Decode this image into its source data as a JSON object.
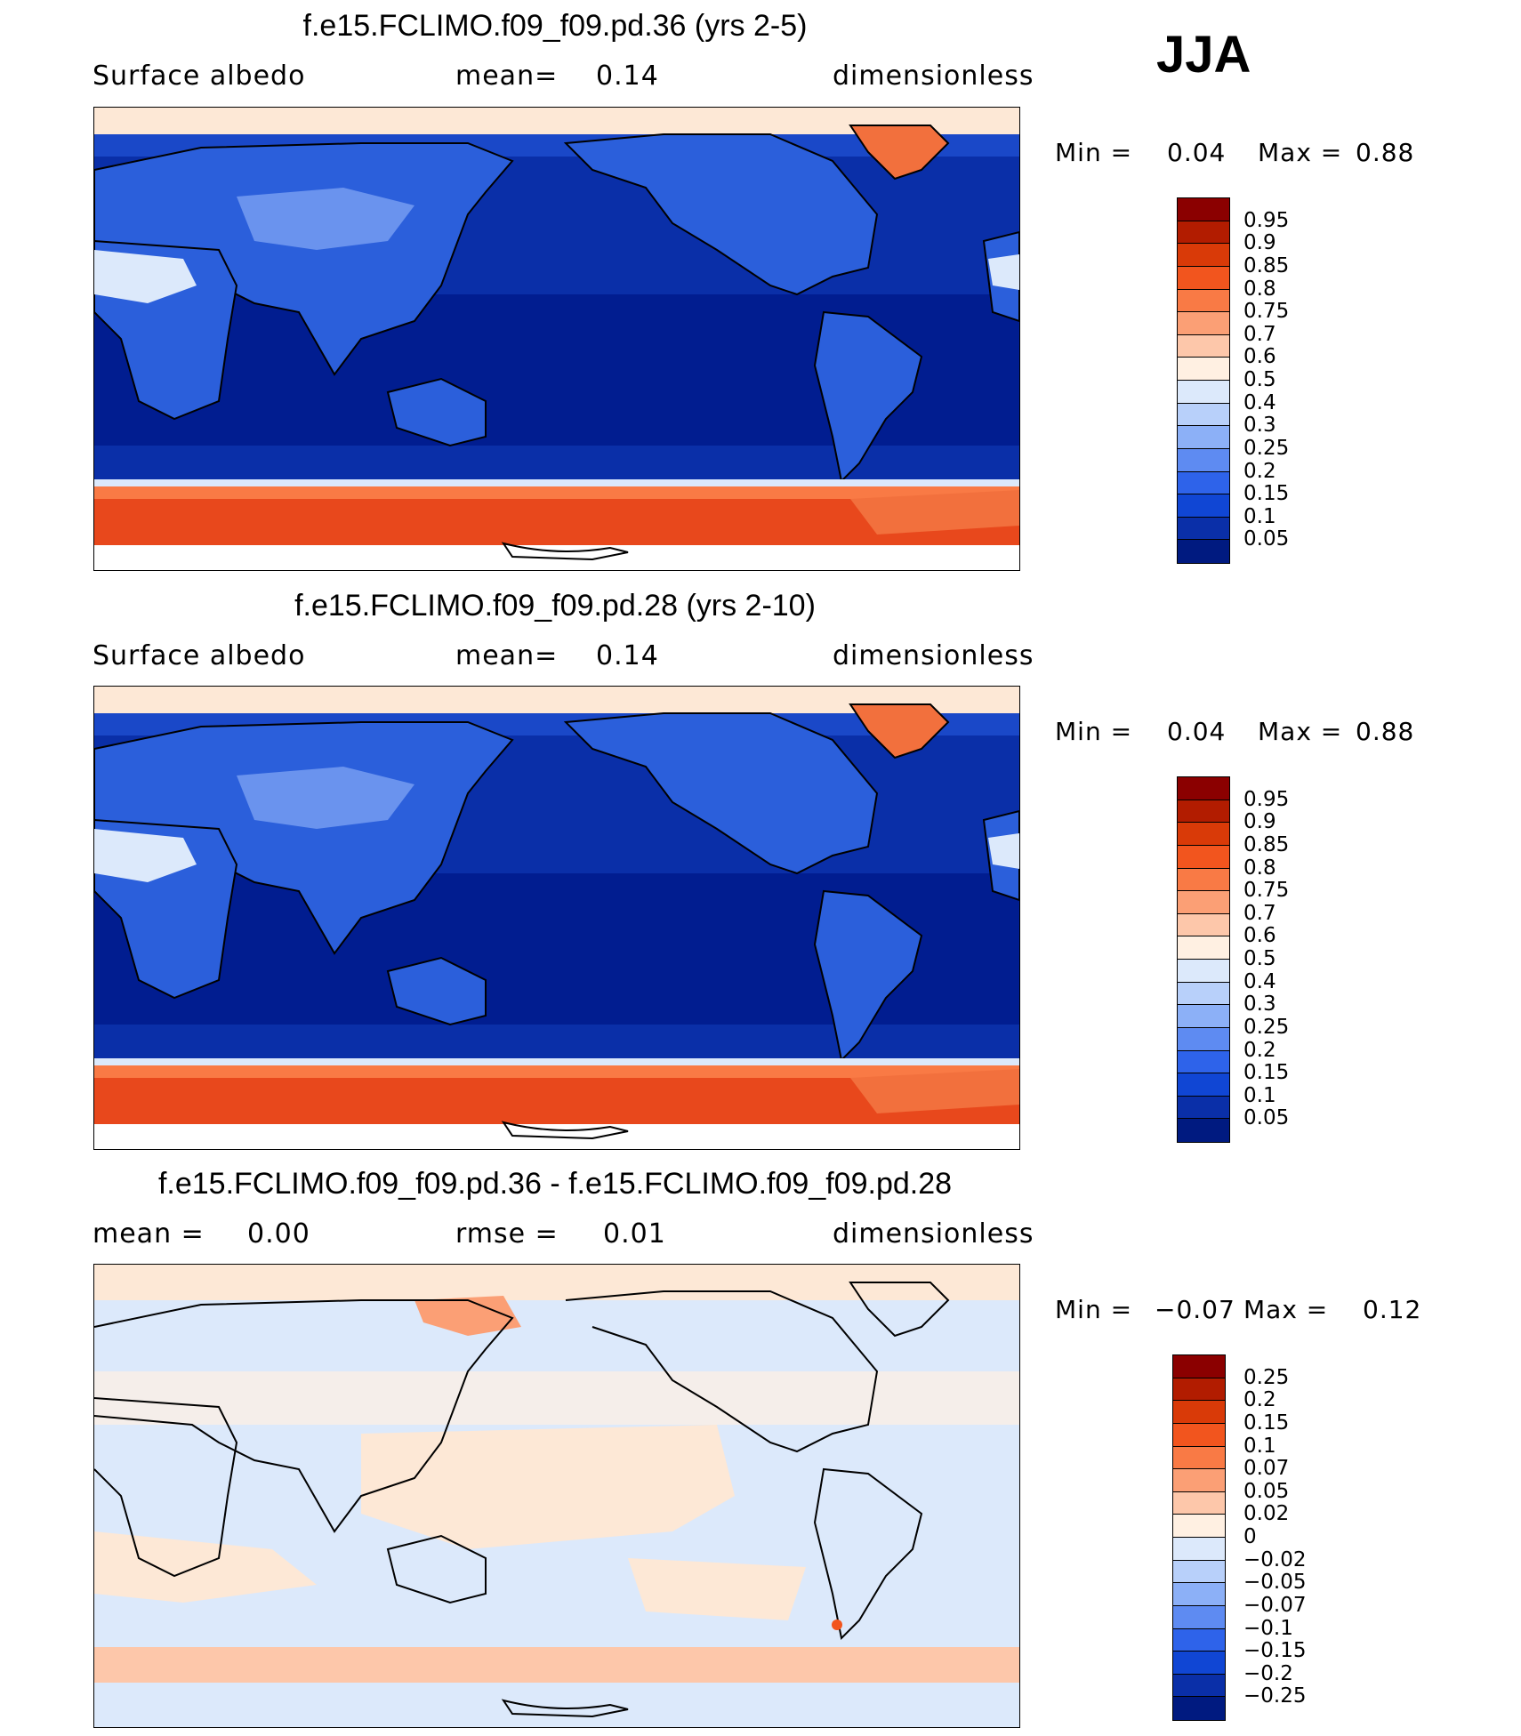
{
  "season": "JJA",
  "colors": {
    "ocean": "#0a2fa8",
    "ocean_deep": "#001a8c",
    "land_blue": "#2b5fdb",
    "land_light": "#6a93ee",
    "ice_red": "#e8481c",
    "ice_orange": "#f2703d",
    "ice_pale": "#fde8d6",
    "white": "#ffffff"
  },
  "panels": [
    {
      "title": "f.e15.FCLIMO.f09_f09.pd.36 (yrs 2-5)",
      "left_label": "Surface albedo",
      "mid_label": "mean=",
      "mid_value": "0.14",
      "right_label": "dimensionless",
      "min_label": "Min =",
      "min_value": "0.04",
      "max_label": "Max =",
      "max_value": "0.88",
      "colorbar_labels": [
        "0.95",
        "0.9",
        "0.85",
        "0.8",
        "0.75",
        "0.7",
        "0.6",
        "0.5",
        "0.4",
        "0.3",
        "0.25",
        "0.2",
        "0.15",
        "0.1",
        "0.05"
      ],
      "colorbar_colors": [
        "#8b0000",
        "#b21c00",
        "#d93a08",
        "#f2551e",
        "#f97a45",
        "#fb9f75",
        "#fdc7aa",
        "#fff0e2",
        "#dce9fb",
        "#b8d0fa",
        "#8cb0f7",
        "#5e8bf2",
        "#2e63ea",
        "#1046d4",
        "#0a2fa8",
        "#001a80"
      ]
    },
    {
      "title": "f.e15.FCLIMO.f09_f09.pd.28 (yrs 2-10)",
      "left_label": "Surface albedo",
      "mid_label": "mean=",
      "mid_value": "0.14",
      "right_label": "dimensionless",
      "min_label": "Min =",
      "min_value": "0.04",
      "max_label": "Max =",
      "max_value": "0.88",
      "colorbar_labels": [
        "0.95",
        "0.9",
        "0.85",
        "0.8",
        "0.75",
        "0.7",
        "0.6",
        "0.5",
        "0.4",
        "0.3",
        "0.25",
        "0.2",
        "0.15",
        "0.1",
        "0.05"
      ],
      "colorbar_colors": [
        "#8b0000",
        "#b21c00",
        "#d93a08",
        "#f2551e",
        "#f97a45",
        "#fb9f75",
        "#fdc7aa",
        "#fff0e2",
        "#dce9fb",
        "#b8d0fa",
        "#8cb0f7",
        "#5e8bf2",
        "#2e63ea",
        "#1046d4",
        "#0a2fa8",
        "#001a80"
      ]
    },
    {
      "title": "f.e15.FCLIMO.f09_f09.pd.36 - f.e15.FCLIMO.f09_f09.pd.28",
      "left_label": "mean =",
      "left_value": "0.00",
      "mid_label": "rmse =",
      "mid_value": "0.01",
      "right_label": "dimensionless",
      "min_label": "Min =",
      "min_value": "−0.07",
      "max_label": "Max =",
      "max_value": "0.12",
      "colorbar_labels": [
        "0.25",
        "0.2",
        "0.15",
        "0.1",
        "0.07",
        "0.05",
        "0.02",
        "0",
        "−0.02",
        "−0.05",
        "−0.07",
        "−0.1",
        "−0.15",
        "−0.2",
        "−0.25"
      ],
      "colorbar_colors": [
        "#8b0000",
        "#b21c00",
        "#d93a08",
        "#f2551e",
        "#f97a45",
        "#fb9f75",
        "#fdc7aa",
        "#fff0e2",
        "#dce9fb",
        "#b8d0fa",
        "#8cb0f7",
        "#5e8bf2",
        "#2e63ea",
        "#1046d4",
        "#0a2fa8",
        "#001a80"
      ]
    }
  ]
}
